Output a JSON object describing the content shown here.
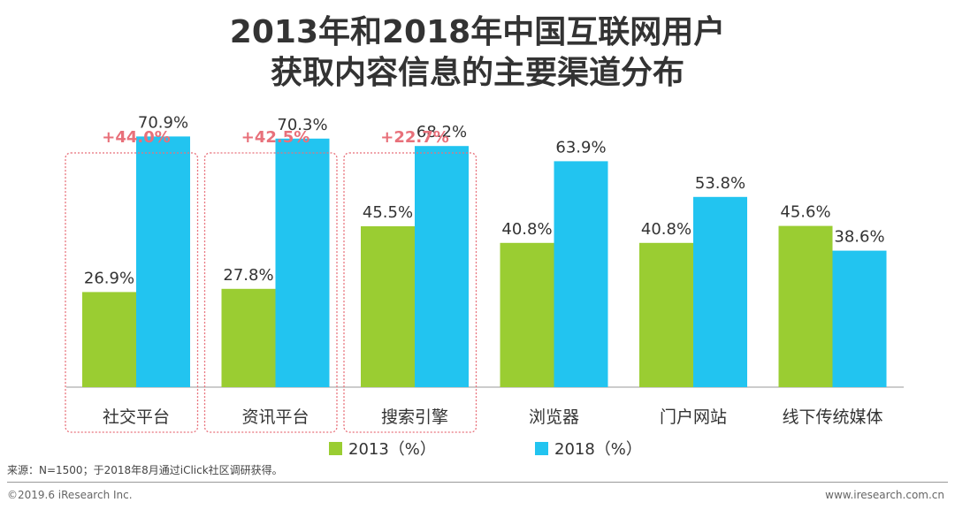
{
  "title": {
    "line1": "2013年和2018年中国互联网用户",
    "line2": "获取内容信息的主要渠道分布"
  },
  "chart_data": {
    "type": "bar",
    "title": "2013年和2018年中国互联网用户获取内容信息的主要渠道分布",
    "categories": [
      "社交平台",
      "资讯平台",
      "搜索引擎",
      "浏览器",
      "门户网站",
      "线下传统媒体"
    ],
    "series": [
      {
        "name": "2013（%）",
        "color": "#9ACD32",
        "values": [
          26.9,
          27.8,
          45.5,
          40.8,
          40.8,
          45.6
        ],
        "labels": [
          "26.9%",
          "27.8%",
          "45.5%",
          "40.8%",
          "40.8%",
          "45.6%"
        ]
      },
      {
        "name": "2018（%）",
        "color": "#22C4F0",
        "values": [
          70.9,
          70.3,
          68.2,
          63.9,
          53.8,
          38.6
        ],
        "labels": [
          "70.9%",
          "70.3%",
          "68.2%",
          "63.9%",
          "53.8%",
          "38.6%"
        ]
      }
    ],
    "growth": [
      "+44.0%",
      "+42.5%",
      "+22.7%"
    ],
    "growth_color": "#E8707A",
    "ylim": [
      0,
      80
    ],
    "xlabel": "",
    "ylabel": "",
    "grid": false,
    "legend_position": "bottom"
  },
  "footer": {
    "source": "来源：N=1500；于2018年8月通过iClick社区调研获得。",
    "copyright": "©2019.6 iResearch Inc.",
    "website": "www.iresearch.com.cn"
  }
}
